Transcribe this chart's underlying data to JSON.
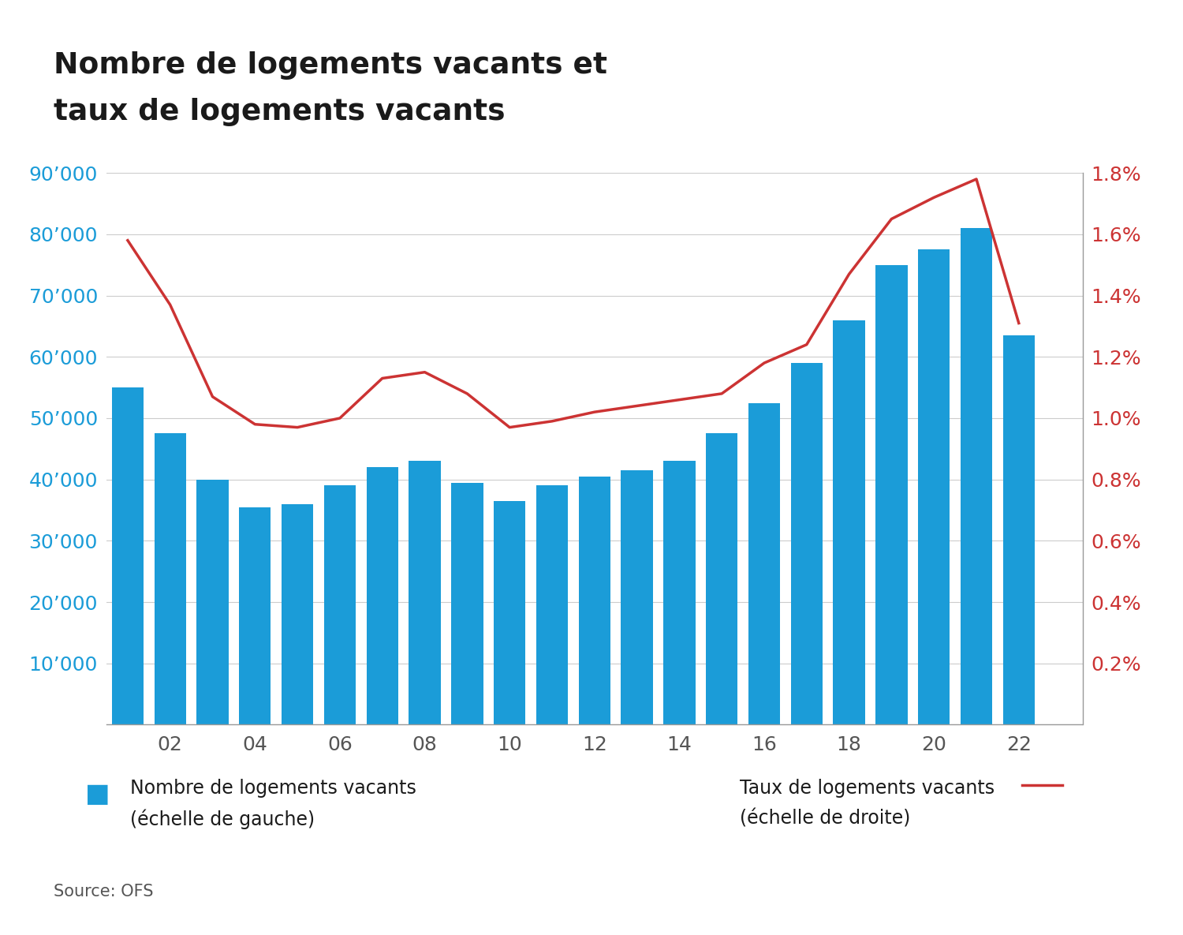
{
  "title_line1": "Nombre de logements vacants et",
  "title_line2": "taux de logements vacants",
  "years": [
    2001,
    2002,
    2003,
    2004,
    2005,
    2006,
    2007,
    2008,
    2009,
    2010,
    2011,
    2012,
    2013,
    2014,
    2015,
    2016,
    2017,
    2018,
    2019,
    2020,
    2021,
    2022
  ],
  "bar_values": [
    55000,
    47500,
    40000,
    35500,
    36000,
    39000,
    42000,
    43000,
    39500,
    36500,
    39000,
    40500,
    41500,
    43000,
    47500,
    52500,
    59000,
    66000,
    75000,
    77500,
    81000,
    63500
  ],
  "rate_values": [
    1.58,
    1.37,
    1.07,
    0.98,
    0.97,
    1.0,
    1.13,
    1.15,
    1.08,
    0.97,
    0.99,
    1.02,
    1.04,
    1.06,
    1.08,
    1.18,
    1.24,
    1.47,
    1.65,
    1.72,
    1.78,
    1.31
  ],
  "x_tick_years": [
    2002,
    2004,
    2006,
    2008,
    2010,
    2012,
    2014,
    2016,
    2018,
    2020,
    2022
  ],
  "x_tick_labels": [
    "02",
    "04",
    "06",
    "08",
    "10",
    "12",
    "14",
    "16",
    "18",
    "20",
    "22"
  ],
  "bar_color": "#1B9CD8",
  "line_color": "#CC3333",
  "left_ylim": [
    0,
    90000
  ],
  "right_ylim": [
    0,
    1.8
  ],
  "left_yticks": [
    0,
    10000,
    20000,
    30000,
    40000,
    50000,
    60000,
    70000,
    80000,
    90000
  ],
  "left_yticklabels": [
    "",
    "10’000",
    "20’000",
    "30’000",
    "40’000",
    "50’000",
    "60’000",
    "70’000",
    "80’000",
    "90’000"
  ],
  "right_yticks": [
    0,
    0.2,
    0.4,
    0.6,
    0.8,
    1.0,
    1.2,
    1.4,
    1.6,
    1.8
  ],
  "right_yticklabels": [
    "",
    "0.2%",
    "0.4%",
    "0.6%",
    "0.8%",
    "1.0%",
    "1.2%",
    "1.4%",
    "1.6%",
    "1.8%"
  ],
  "legend_bar_text1": "Nombre de logements vacants",
  "legend_bar_text2": "(échelle de gauche)",
  "legend_line_text1": "Taux de logements vacants",
  "legend_line_text2": "(échelle de droite)",
  "source_text": "Source: OFS",
  "background_color": "#ffffff",
  "grid_color": "#cccccc",
  "axis_color": "#999999",
  "title_color": "#1a1a1a",
  "tick_color": "#555555",
  "left_tick_color": "#1B9CD8",
  "right_tick_color": "#CC3333"
}
